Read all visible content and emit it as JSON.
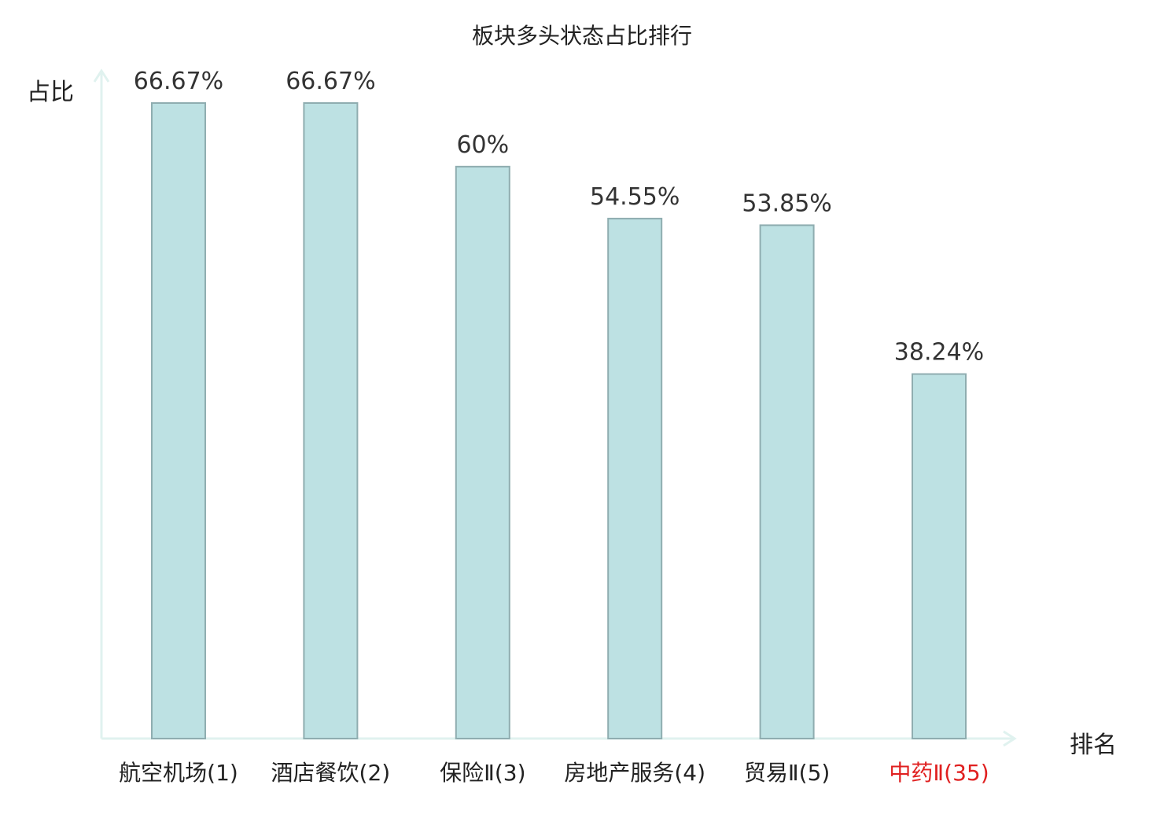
{
  "chart_data": {
    "type": "bar",
    "title": "板块多头状态占比排行",
    "ylabel": "占比",
    "xlabel": "排名",
    "categories": [
      "航空机场(1)",
      "酒店餐饮(2)",
      "保险Ⅱ(3)",
      "房地产服务(4)",
      "贸易Ⅱ(5)",
      "中药Ⅱ(35)"
    ],
    "values": [
      66.67,
      66.67,
      60,
      54.55,
      53.85,
      38.24
    ],
    "value_labels": [
      "66.67%",
      "66.67%",
      "60%",
      "54.55%",
      "53.85%",
      "38.24%"
    ],
    "ylim": [
      0,
      66.67
    ],
    "grid": false,
    "highlight_category": "中药Ⅱ(35)",
    "colors": {
      "bar_fill": "#bde1e3",
      "bar_stroke": "#8fadb0",
      "axis": "#e0f2ef",
      "highlight": "#e02020"
    }
  }
}
